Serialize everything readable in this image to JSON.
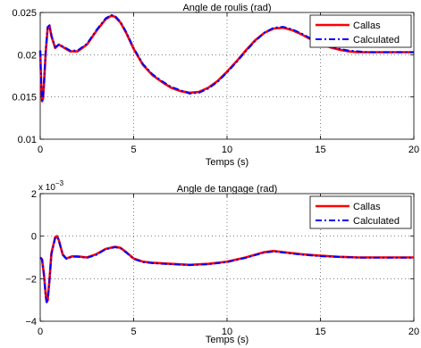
{
  "chart_data": [
    {
      "type": "line",
      "title": "Angle de roulis (rad)",
      "xlabel": "Temps (s)",
      "ylabel": "",
      "xlim": [
        0,
        20
      ],
      "ylim": [
        0.01,
        0.025
      ],
      "x_ticks": [
        0,
        5,
        10,
        15,
        20
      ],
      "y_ticks": [
        0.01,
        0.015,
        0.02,
        0.025
      ],
      "x_tick_labels": [
        "0",
        "5",
        "10",
        "15",
        "20"
      ],
      "y_tick_labels": [
        "0.01",
        "0.015",
        "0.02",
        "0.025"
      ],
      "grid": true,
      "legend_position": "top-right",
      "series": [
        {
          "name": "Callas",
          "color": "#ff0000",
          "style": "solid",
          "x": [
            0,
            0.05,
            0.1,
            0.15,
            0.2,
            0.3,
            0.4,
            0.5,
            0.6,
            0.8,
            1.0,
            1.3,
            1.6,
            2.0,
            2.5,
            3.0,
            3.5,
            3.8,
            4.0,
            4.3,
            4.6,
            5.0,
            5.5,
            6.0,
            6.5,
            7.0,
            7.5,
            8.0,
            8.5,
            9.0,
            9.5,
            10.0,
            10.5,
            11.0,
            11.5,
            12.0,
            12.5,
            13.0,
            13.5,
            14.0,
            14.5,
            15.0,
            15.5,
            16.0,
            16.5,
            17.0,
            17.5,
            18.0,
            18.5,
            19.0,
            19.5,
            20.0
          ],
          "y": [
            0.0205,
            0.0165,
            0.0145,
            0.0148,
            0.0165,
            0.0205,
            0.0232,
            0.0234,
            0.0222,
            0.0208,
            0.0212,
            0.0208,
            0.0204,
            0.0204,
            0.0212,
            0.0228,
            0.0242,
            0.0246,
            0.0245,
            0.0238,
            0.0226,
            0.0207,
            0.0188,
            0.0176,
            0.0168,
            0.0161,
            0.0157,
            0.0155,
            0.0156,
            0.0161,
            0.0169,
            0.018,
            0.0192,
            0.0205,
            0.0217,
            0.0226,
            0.0231,
            0.0232,
            0.0229,
            0.0224,
            0.0218,
            0.0213,
            0.0209,
            0.0206,
            0.0204,
            0.0203,
            0.0203,
            0.0203,
            0.0203,
            0.0203,
            0.0203,
            0.0203
          ]
        },
        {
          "name": "Calculated",
          "color": "#0000ff",
          "style": "dashdot",
          "x": [
            0,
            0.05,
            0.1,
            0.15,
            0.2,
            0.3,
            0.4,
            0.5,
            0.6,
            0.8,
            1.0,
            1.3,
            1.6,
            2.0,
            2.5,
            3.0,
            3.5,
            3.8,
            4.0,
            4.3,
            4.6,
            5.0,
            5.5,
            6.0,
            6.5,
            7.0,
            7.5,
            8.0,
            8.5,
            9.0,
            9.5,
            10.0,
            10.5,
            11.0,
            11.5,
            12.0,
            12.5,
            13.0,
            13.5,
            14.0,
            14.5,
            15.0,
            15.5,
            16.0,
            16.5,
            17.0,
            17.5,
            18.0,
            18.5,
            19.0,
            19.5,
            20.0
          ],
          "y": [
            0.0205,
            0.0166,
            0.0146,
            0.0149,
            0.0166,
            0.0206,
            0.0233,
            0.0235,
            0.0223,
            0.0209,
            0.0212,
            0.0209,
            0.0205,
            0.0205,
            0.0213,
            0.0229,
            0.0243,
            0.0247,
            0.0246,
            0.0239,
            0.0227,
            0.0208,
            0.0189,
            0.0177,
            0.0169,
            0.0162,
            0.0158,
            0.0154,
            0.0155,
            0.016,
            0.0168,
            0.0179,
            0.0191,
            0.0204,
            0.0216,
            0.0226,
            0.0232,
            0.0233,
            0.023,
            0.0225,
            0.0219,
            0.0214,
            0.021,
            0.0207,
            0.0205,
            0.0204,
            0.0203,
            0.0203,
            0.0203,
            0.0203,
            0.0203,
            0.0203
          ]
        }
      ]
    },
    {
      "type": "line",
      "title": "Angle de tangage (rad)",
      "xlabel": "Temps (s)",
      "ylabel": "",
      "y_scale_base": "x 10",
      "y_scale_exponent": "−3",
      "xlim": [
        0,
        20
      ],
      "ylim": [
        -4,
        2
      ],
      "x_ticks": [
        0,
        5,
        10,
        15,
        20
      ],
      "y_ticks": [
        -4,
        -2,
        0,
        2
      ],
      "x_tick_labels": [
        "0",
        "5",
        "10",
        "15",
        "20"
      ],
      "y_tick_labels": [
        "−4",
        "−2",
        "0",
        "2"
      ],
      "grid": true,
      "legend_position": "top-right",
      "series": [
        {
          "name": "Callas",
          "color": "#ff0000",
          "style": "solid",
          "x": [
            0,
            0.1,
            0.2,
            0.3,
            0.35,
            0.4,
            0.5,
            0.6,
            0.8,
            0.9,
            1.0,
            1.2,
            1.4,
            1.7,
            2.0,
            2.5,
            3.0,
            3.5,
            4.0,
            4.3,
            4.6,
            5.0,
            5.5,
            6.0,
            7.0,
            8.0,
            9.0,
            10.0,
            11.0,
            12.0,
            12.5,
            13.0,
            14.0,
            15.0,
            16.0,
            17.0,
            18.0,
            19.0,
            20.0
          ],
          "y": [
            -1.0,
            -1.1,
            -1.8,
            -2.8,
            -3.1,
            -3.0,
            -2.0,
            -0.8,
            -0.05,
            0.0,
            -0.2,
            -0.85,
            -1.05,
            -0.95,
            -0.95,
            -1.0,
            -0.85,
            -0.6,
            -0.5,
            -0.55,
            -0.75,
            -1.05,
            -1.2,
            -1.25,
            -1.3,
            -1.35,
            -1.3,
            -1.2,
            -1.0,
            -0.75,
            -0.7,
            -0.75,
            -0.85,
            -0.92,
            -0.97,
            -1.0,
            -1.0,
            -1.0,
            -1.0
          ]
        },
        {
          "name": "Calculated",
          "color": "#0000ff",
          "style": "dashdot",
          "x": [
            0,
            0.1,
            0.2,
            0.3,
            0.35,
            0.4,
            0.5,
            0.6,
            0.8,
            0.9,
            1.0,
            1.2,
            1.4,
            1.7,
            2.0,
            2.5,
            3.0,
            3.5,
            4.0,
            4.3,
            4.6,
            5.0,
            5.5,
            6.0,
            7.0,
            8.0,
            9.0,
            10.0,
            11.0,
            12.0,
            12.5,
            13.0,
            14.0,
            15.0,
            16.0,
            17.0,
            18.0,
            19.0,
            20.0
          ],
          "y": [
            -1.0,
            -1.1,
            -1.85,
            -2.9,
            -3.15,
            -3.05,
            -2.05,
            -0.85,
            -0.1,
            -0.02,
            -0.22,
            -0.88,
            -1.07,
            -0.97,
            -0.97,
            -1.02,
            -0.88,
            -0.62,
            -0.52,
            -0.57,
            -0.77,
            -1.07,
            -1.22,
            -1.27,
            -1.32,
            -1.36,
            -1.32,
            -1.22,
            -1.02,
            -0.77,
            -0.72,
            -0.77,
            -0.87,
            -0.94,
            -0.98,
            -1.01,
            -1.01,
            -1.01,
            -1.01
          ]
        }
      ]
    }
  ]
}
